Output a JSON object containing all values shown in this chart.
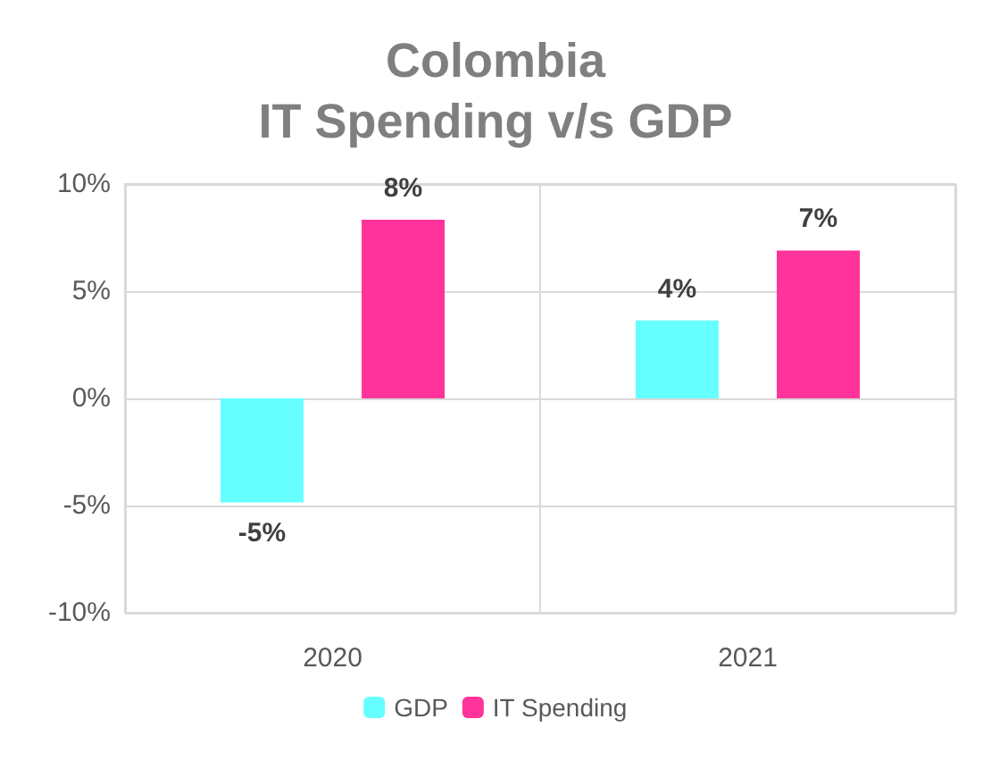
{
  "chart_data": {
    "type": "bar",
    "title": "Colombia\nIT Spending v/s GDP",
    "categories": [
      "2020",
      "2021"
    ],
    "series": [
      {
        "name": "GDP",
        "color": "#66ffff",
        "values": [
          -4.85,
          3.64
        ],
        "value_labels": [
          "-5%",
          "4%"
        ]
      },
      {
        "name": "IT Spending",
        "color": "#ff3399",
        "values": [
          8.33,
          6.9
        ],
        "value_labels": [
          "8%",
          "7%"
        ]
      }
    ],
    "ylim": [
      -10,
      10
    ],
    "yticks": [
      {
        "value": -10,
        "label": "-10%"
      },
      {
        "value": -5,
        "label": "-5%"
      },
      {
        "value": 0,
        "label": "0%"
      },
      {
        "value": 5,
        "label": "5%"
      },
      {
        "value": 10,
        "label": "10%"
      }
    ],
    "grid": true,
    "legend": "bottom"
  }
}
